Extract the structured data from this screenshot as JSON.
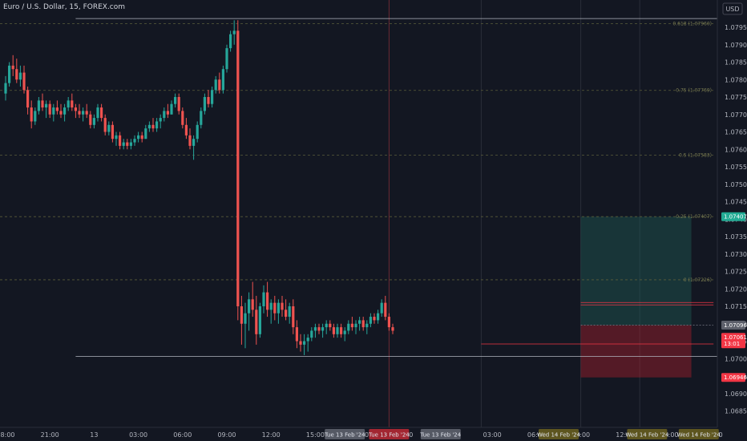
{
  "chart_data": {
    "type": "candlestick",
    "title": "Euro / U.S. Dollar, 15, FOREX.com",
    "currency": "USD",
    "y_ticks": [
      "1.07950",
      "1.07900",
      "1.07850",
      "1.07800",
      "1.07750",
      "1.07700",
      "1.07650",
      "1.07600",
      "1.07550",
      "1.07500",
      "1.07450",
      "1.07400",
      "1.07350",
      "1.07300",
      "1.07250",
      "1.07200",
      "1.07150",
      "1.07100",
      "1.07050",
      "1.07000",
      "1.06950",
      "1.06900",
      "1.06850"
    ],
    "y_tick_values": [
      1.0795,
      1.079,
      1.0785,
      1.078,
      1.0775,
      1.077,
      1.0765,
      1.076,
      1.0755,
      1.075,
      1.0745,
      1.074,
      1.0735,
      1.073,
      1.0725,
      1.072,
      1.0715,
      1.071,
      1.0705,
      1.07,
      1.0695,
      1.069,
      1.0685
    ],
    "x_ticks": [
      {
        "label": "18:00",
        "bar": 0
      },
      {
        "label": "21:00",
        "bar": 12
      },
      {
        "label": "13",
        "bar": 24
      },
      {
        "label": "03:00",
        "bar": 36
      },
      {
        "label": "06:00",
        "bar": 48
      },
      {
        "label": "09:00",
        "bar": 60
      },
      {
        "label": "12:00",
        "bar": 72
      },
      {
        "label": "15:00",
        "bar": 84
      },
      {
        "label": "18:00",
        "bar": 96
      },
      {
        "label": "21:00",
        "bar": 108
      },
      {
        "label": "14",
        "bar": 120
      },
      {
        "label": "03:00",
        "bar": 132
      },
      {
        "label": "06:00",
        "bar": 144
      },
      {
        "label": "09:00",
        "bar": 156
      },
      {
        "label": "12:00",
        "bar": 168
      },
      {
        "label": "15:00",
        "bar": 180
      },
      {
        "label": "18:00",
        "bar": 192
      }
    ],
    "fib_levels": [
      {
        "label": "0.618 (1.07960)",
        "value": 1.0796
      },
      {
        "label": "0.75 (1.07769)",
        "value": 1.07769
      },
      {
        "label": "0.5 (1.07583)",
        "value": 1.07583
      },
      {
        "label": "0.25 (1.07407)",
        "value": 1.07407
      },
      {
        "label": "0 (1.07226)",
        "value": 1.07226
      }
    ],
    "price_tags": [
      {
        "text": "1.07407",
        "value": 1.07407,
        "color": "#22ab94"
      },
      {
        "text": "1.07096",
        "value": 1.07096,
        "color": "#5d606b"
      },
      {
        "text": "1.07061",
        "value": 1.07061,
        "color": "#f23645",
        "sub": "13:01"
      },
      {
        "text": "1.06946",
        "value": 1.06946,
        "color": "#f23645"
      }
    ],
    "time_tags": [
      {
        "text": "Tue 13 Feb '24",
        "bar": 92,
        "color": "#5d606b"
      },
      {
        "text": "Tue 13 Feb '24",
        "bar": 104,
        "color": "#b22833"
      },
      {
        "text": "Tue 13 Feb '24",
        "bar": 118,
        "color": "#5d606b"
      },
      {
        "text": "Wed 14 Feb '24",
        "bar": 150,
        "color": "#665c1f"
      },
      {
        "text": "Wed 14 Feb '24",
        "bar": 174,
        "color": "#665c1f"
      },
      {
        "text": "Wed 14 Feb '24",
        "bar": 188,
        "color": "#665c1f"
      }
    ],
    "position": {
      "entry": 1.07096,
      "target": 1.07407,
      "stop": 1.06946,
      "start_bar": 156,
      "end_bar": 186
    },
    "key_lines": [
      {
        "value": 1.07975,
        "from_bar": 19,
        "to_bar": 200
      },
      {
        "value": 1.07006,
        "from_bar": 19,
        "to_bar": 200
      },
      {
        "value": 1.07042,
        "from_bar": 129,
        "to_bar": 192
      },
      {
        "value": 1.07161,
        "from_bar": 156,
        "to_bar": 192
      },
      {
        "value": 1.07154,
        "from_bar": 156,
        "to_bar": 192
      }
    ],
    "verticals": [
      {
        "bar": 104,
        "color": "#6b2b33"
      },
      {
        "bar": 129,
        "color": "#2a2e39"
      },
      {
        "bar": 156,
        "color": "#2a2e39"
      },
      {
        "bar": 172,
        "color": "#2a2e39"
      }
    ],
    "candles": [
      [
        1.0776,
        1.0781,
        1.0774,
        1.0779
      ],
      [
        1.0779,
        1.0785,
        1.0778,
        1.0784
      ],
      [
        1.0784,
        1.0787,
        1.0781,
        1.0783
      ],
      [
        1.0783,
        1.0786,
        1.0779,
        1.078
      ],
      [
        1.078,
        1.0784,
        1.0778,
        1.0782
      ],
      [
        1.0782,
        1.0784,
        1.0776,
        1.0777
      ],
      [
        1.0777,
        1.0778,
        1.077,
        1.0772
      ],
      [
        1.0772,
        1.0774,
        1.0766,
        1.0768
      ],
      [
        1.0768,
        1.0772,
        1.0767,
        1.0771
      ],
      [
        1.0771,
        1.0775,
        1.077,
        1.0774
      ],
      [
        1.0774,
        1.0776,
        1.0771,
        1.0772
      ],
      [
        1.0772,
        1.0774,
        1.0769,
        1.0773
      ],
      [
        1.0773,
        1.0774,
        1.0769,
        1.077
      ],
      [
        1.077,
        1.0773,
        1.0768,
        1.0772
      ],
      [
        1.0772,
        1.0774,
        1.077,
        1.0771
      ],
      [
        1.0771,
        1.0773,
        1.0769,
        1.077
      ],
      [
        1.077,
        1.0773,
        1.0768,
        1.0772
      ],
      [
        1.0772,
        1.0775,
        1.0771,
        1.0774
      ],
      [
        1.0774,
        1.0776,
        1.0771,
        1.0772
      ],
      [
        1.0772,
        1.0773,
        1.0769,
        1.0771
      ],
      [
        1.0771,
        1.0773,
        1.0769,
        1.077
      ],
      [
        1.077,
        1.0772,
        1.0768,
        1.0771
      ],
      [
        1.0771,
        1.0773,
        1.0769,
        1.077
      ],
      [
        1.077,
        1.0771,
        1.0766,
        1.0767
      ],
      [
        1.0767,
        1.077,
        1.0766,
        1.0769
      ],
      [
        1.0769,
        1.0773,
        1.0768,
        1.0772
      ],
      [
        1.0772,
        1.0773,
        1.0768,
        1.0769
      ],
      [
        1.0769,
        1.077,
        1.0764,
        1.0765
      ],
      [
        1.0765,
        1.0768,
        1.0764,
        1.0767
      ],
      [
        1.0767,
        1.0768,
        1.0762,
        1.0763
      ],
      [
        1.0763,
        1.0765,
        1.0761,
        1.0764
      ],
      [
        1.0764,
        1.0765,
        1.076,
        1.0761
      ],
      [
        1.0761,
        1.0763,
        1.076,
        1.0762
      ],
      [
        1.0762,
        1.0763,
        1.076,
        1.0761
      ],
      [
        1.0761,
        1.0763,
        1.076,
        1.0762
      ],
      [
        1.0762,
        1.0764,
        1.0761,
        1.0763
      ],
      [
        1.0763,
        1.0765,
        1.0762,
        1.0764
      ],
      [
        1.0764,
        1.0765,
        1.0762,
        1.0763
      ],
      [
        1.0763,
        1.0767,
        1.0763,
        1.0766
      ],
      [
        1.0766,
        1.0768,
        1.0765,
        1.0767
      ],
      [
        1.0767,
        1.0769,
        1.0765,
        1.0766
      ],
      [
        1.0766,
        1.0769,
        1.0765,
        1.0768
      ],
      [
        1.0768,
        1.077,
        1.0766,
        1.0769
      ],
      [
        1.0769,
        1.0772,
        1.0768,
        1.0771
      ],
      [
        1.0771,
        1.0773,
        1.0769,
        1.077
      ],
      [
        1.077,
        1.0774,
        1.077,
        1.0773
      ],
      [
        1.0773,
        1.0776,
        1.0772,
        1.0775
      ],
      [
        1.0775,
        1.0776,
        1.077,
        1.0771
      ],
      [
        1.0771,
        1.0772,
        1.0766,
        1.0767
      ],
      [
        1.0767,
        1.0769,
        1.0763,
        1.0764
      ],
      [
        1.0764,
        1.0766,
        1.076,
        1.0761
      ],
      [
        1.0761,
        1.0764,
        1.0757,
        1.0763
      ],
      [
        1.0763,
        1.0768,
        1.0762,
        1.0767
      ],
      [
        1.0767,
        1.0772,
        1.0766,
        1.0771
      ],
      [
        1.0771,
        1.0776,
        1.077,
        1.0775
      ],
      [
        1.0775,
        1.0777,
        1.0772,
        1.0773
      ],
      [
        1.0773,
        1.0778,
        1.0772,
        1.0777
      ],
      [
        1.0777,
        1.0781,
        1.0776,
        1.078
      ],
      [
        1.078,
        1.0782,
        1.0776,
        1.0777
      ],
      [
        1.0777,
        1.0784,
        1.0776,
        1.0783
      ],
      [
        1.0783,
        1.079,
        1.0782,
        1.0789
      ],
      [
        1.0789,
        1.0794,
        1.0788,
        1.0793
      ],
      [
        1.0793,
        1.0797,
        1.079,
        1.0794
      ],
      [
        1.0794,
        1.0797,
        1.0711,
        1.0715
      ],
      [
        1.0715,
        1.0718,
        1.0704,
        1.071
      ],
      [
        1.071,
        1.0716,
        1.0703,
        1.0713
      ],
      [
        1.0713,
        1.0719,
        1.0708,
        1.0717
      ],
      [
        1.0717,
        1.0722,
        1.0712,
        1.0714
      ],
      [
        1.0714,
        1.0718,
        1.0704,
        1.0707
      ],
      [
        1.0707,
        1.0716,
        1.0706,
        1.0715
      ],
      [
        1.0715,
        1.0721,
        1.0713,
        1.0719
      ],
      [
        1.0719,
        1.0722,
        1.0712,
        1.0714
      ],
      [
        1.0714,
        1.0717,
        1.071,
        1.0716
      ],
      [
        1.0716,
        1.0718,
        1.0711,
        1.0713
      ],
      [
        1.0713,
        1.0717,
        1.071,
        1.0716
      ],
      [
        1.0716,
        1.0718,
        1.0712,
        1.0714
      ],
      [
        1.0714,
        1.0717,
        1.0711,
        1.0712
      ],
      [
        1.0712,
        1.0716,
        1.071,
        1.0715
      ],
      [
        1.0715,
        1.0717,
        1.0707,
        1.0709
      ],
      [
        1.0709,
        1.0711,
        1.0703,
        1.0705
      ],
      [
        1.0705,
        1.0707,
        1.0702,
        1.0704
      ],
      [
        1.0704,
        1.0707,
        1.0701,
        1.0705
      ],
      [
        1.0705,
        1.0707,
        1.0702,
        1.0706
      ],
      [
        1.0706,
        1.0709,
        1.0705,
        1.0708
      ],
      [
        1.0708,
        1.071,
        1.0706,
        1.0709
      ],
      [
        1.0709,
        1.071,
        1.0707,
        1.0708
      ],
      [
        1.0708,
        1.071,
        1.0706,
        1.0709
      ],
      [
        1.0709,
        1.0711,
        1.0707,
        1.071
      ],
      [
        1.071,
        1.0711,
        1.0708,
        1.0709
      ],
      [
        1.0709,
        1.071,
        1.0706,
        1.0707
      ],
      [
        1.0707,
        1.071,
        1.0706,
        1.0709
      ],
      [
        1.0709,
        1.071,
        1.0706,
        1.0707
      ],
      [
        1.0707,
        1.0709,
        1.0705,
        1.0708
      ],
      [
        1.0708,
        1.0711,
        1.0707,
        1.071
      ],
      [
        1.071,
        1.0712,
        1.0708,
        1.0709
      ],
      [
        1.0709,
        1.0711,
        1.0707,
        1.071
      ],
      [
        1.071,
        1.0712,
        1.0708,
        1.0711
      ],
      [
        1.0711,
        1.0712,
        1.0708,
        1.0709
      ],
      [
        1.0709,
        1.0711,
        1.0707,
        1.071
      ],
      [
        1.071,
        1.0713,
        1.0709,
        1.0712
      ],
      [
        1.0712,
        1.0713,
        1.071,
        1.0711
      ],
      [
        1.0711,
        1.0714,
        1.071,
        1.0713
      ],
      [
        1.0713,
        1.0717,
        1.0712,
        1.0716
      ],
      [
        1.0716,
        1.0718,
        1.0711,
        1.0712
      ],
      [
        1.0712,
        1.0713,
        1.0708,
        1.0709
      ],
      [
        1.0709,
        1.071,
        1.0707,
        1.0708
      ]
    ]
  }
}
